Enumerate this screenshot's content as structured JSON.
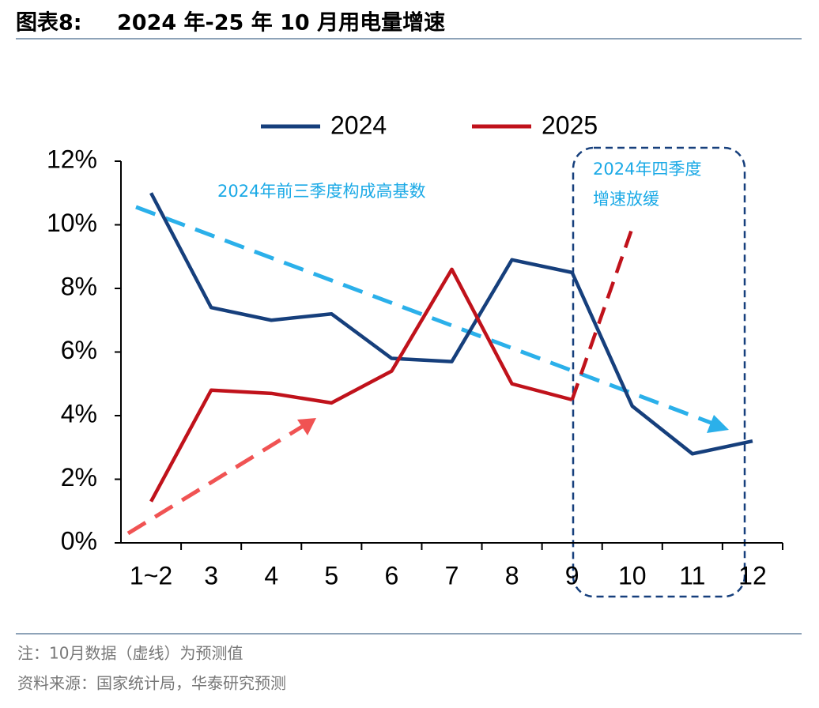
{
  "figure_label": "图表8:",
  "chart_data": {
    "type": "line",
    "title": "2024 年-25 年 10 月用电量增速",
    "categories": [
      "1~2",
      "3",
      "4",
      "5",
      "6",
      "7",
      "8",
      "9",
      "10",
      "11",
      "12"
    ],
    "series": [
      {
        "name": "2024",
        "color": "#163f7c",
        "values": [
          11.0,
          7.4,
          7.0,
          7.2,
          5.8,
          5.7,
          8.9,
          8.5,
          4.3,
          2.8,
          3.2
        ]
      },
      {
        "name": "2025",
        "color": "#c0121b",
        "values": [
          1.3,
          4.8,
          4.7,
          4.4,
          5.4,
          8.6,
          5.0,
          4.5,
          9.9,
          null,
          null
        ],
        "dashed_from_category": "9"
      }
    ],
    "ylim": [
      0,
      12
    ],
    "yticks": [
      {
        "value": 0,
        "label": "0%"
      },
      {
        "value": 2,
        "label": "2%"
      },
      {
        "value": 4,
        "label": "4%"
      },
      {
        "value": 6,
        "label": "6%"
      },
      {
        "value": 8,
        "label": "8%"
      },
      {
        "value": 10,
        "label": "10%"
      },
      {
        "value": 12,
        "label": "12%"
      }
    ],
    "legend": "top",
    "annotations": [
      "2024年前三季度构成高基数",
      "2024年四季度",
      "增速放缓"
    ]
  },
  "note": "注：10月数据（虚线）为预测值",
  "source": "资料来源：国家统计局，华泰研究预测"
}
